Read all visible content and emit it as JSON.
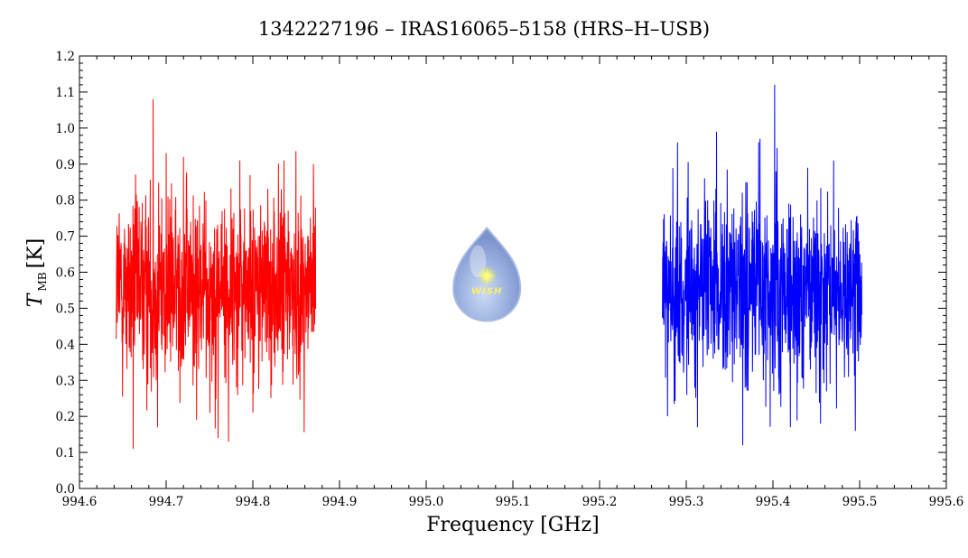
{
  "chart_data": {
    "type": "line",
    "title": "1342227196 – IRAS16065–5158 (HRS–H–USB)",
    "xlabel": "Frequency [GHz]",
    "ylabel_main": "T",
    "ylabel_sub": "MB",
    "ylabel_unit": "[K]",
    "xlim": [
      994.6,
      995.6
    ],
    "ylim": [
      0.0,
      1.2
    ],
    "xticks": [
      "994.6",
      "994.7",
      "994.8",
      "994.9",
      "995.0",
      "995.1",
      "995.2",
      "995.3",
      "995.4",
      "995.5",
      "995.6"
    ],
    "yticks": [
      "0.0",
      "0.1",
      "0.2",
      "0.3",
      "0.4",
      "0.5",
      "0.6",
      "0.7",
      "0.8",
      "0.9",
      "1.0",
      "1.1",
      "1.2"
    ],
    "grid": false,
    "logo": {
      "text": "WISH",
      "x": 995.07,
      "y": 0.58
    },
    "series": [
      {
        "color": "#ff0000",
        "x_start": 994.6425,
        "x_end": 994.8725,
        "points": 900,
        "mean": 0.555,
        "noise_sigma": 0.13,
        "min": 0.11,
        "max": 1.08,
        "peaks": [
          {
            "x": 994.685,
            "y": 1.08
          },
          {
            "x": 994.662,
            "y": 0.95
          },
          {
            "x": 994.7,
            "y": 0.93
          },
          {
            "x": 994.72,
            "y": 0.92
          },
          {
            "x": 994.785,
            "y": 0.91
          },
          {
            "x": 994.836,
            "y": 0.91
          },
          {
            "x": 994.87,
            "y": 0.9
          }
        ],
        "troughs": [
          {
            "x": 994.662,
            "y": 0.11
          },
          {
            "x": 994.69,
            "y": 0.17
          },
          {
            "x": 994.735,
            "y": 0.19
          },
          {
            "x": 994.76,
            "y": 0.14
          },
          {
            "x": 994.772,
            "y": 0.13
          },
          {
            "x": 994.8,
            "y": 0.21
          }
        ]
      },
      {
        "color": "#0000ff",
        "x_start": 995.2725,
        "x_end": 995.5025,
        "points": 900,
        "mean": 0.545,
        "noise_sigma": 0.13,
        "min": 0.12,
        "max": 1.12,
        "peaks": [
          {
            "x": 995.402,
            "y": 1.12
          },
          {
            "x": 995.335,
            "y": 0.99
          },
          {
            "x": 995.385,
            "y": 0.97
          },
          {
            "x": 995.29,
            "y": 0.96
          },
          {
            "x": 995.47,
            "y": 0.91
          },
          {
            "x": 995.44,
            "y": 0.89
          }
        ],
        "troughs": [
          {
            "x": 995.365,
            "y": 0.12
          },
          {
            "x": 995.313,
            "y": 0.17
          },
          {
            "x": 995.42,
            "y": 0.17
          },
          {
            "x": 995.495,
            "y": 0.16
          },
          {
            "x": 995.455,
            "y": 0.18
          }
        ]
      }
    ]
  }
}
